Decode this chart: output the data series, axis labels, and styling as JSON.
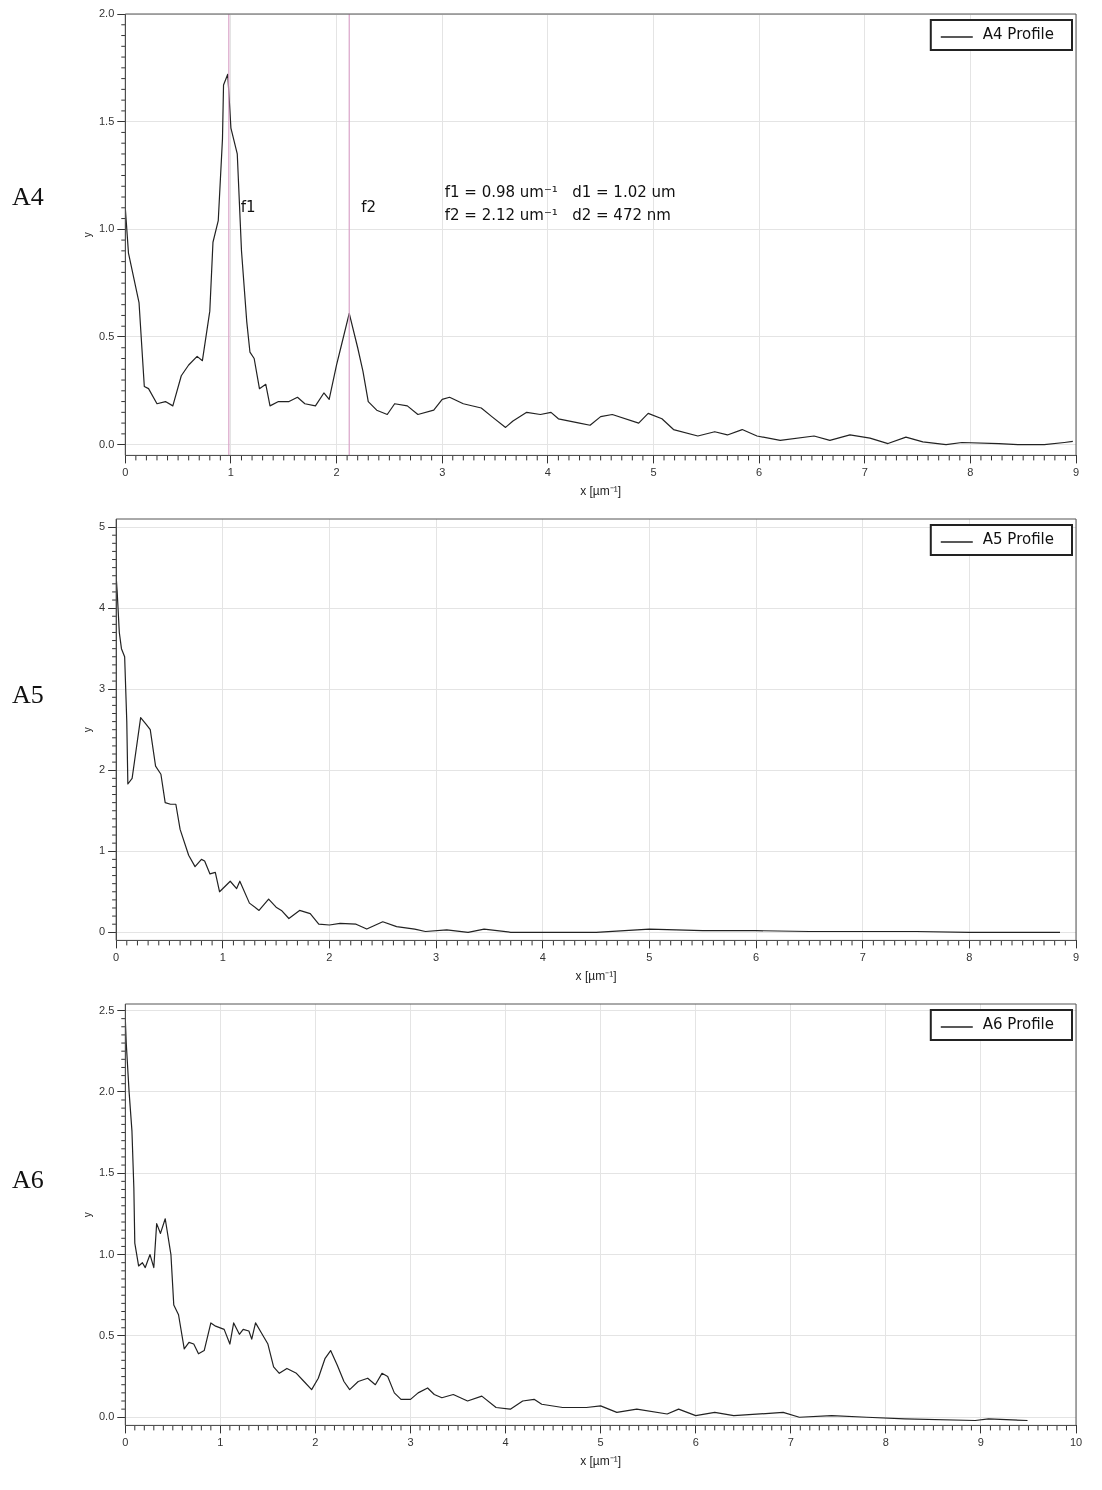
{
  "chart_data": [
    {
      "type": "line",
      "title": "A4",
      "xlabel": "x [µm⁻¹]",
      "ylabel": "y",
      "xlim": [
        0,
        9
      ],
      "xticks": [
        0,
        1,
        2,
        3,
        4,
        5,
        6,
        7,
        8,
        9
      ],
      "ylim": [
        -0.05,
        2.0
      ],
      "yticks": [
        {
          "value": 0,
          "label": "0.0"
        },
        0.5,
        {
          "value": 1,
          "label": "1.0"
        },
        1.5,
        {
          "value": 2,
          "label": "2.0"
        }
      ],
      "grid": true,
      "legend": "top right",
      "marker": "none",
      "line_style": "solid",
      "ref_lines": [
        {
          "axis": "x",
          "value": 0.98,
          "label": "f1",
          "color": "#d9a3c8"
        },
        {
          "axis": "x",
          "value": 2.12,
          "label": "f2",
          "color": "#d9a3c8"
        }
      ],
      "annotations": [
        "f1 = 0.98 um⁻¹   d1 = 1.02 um",
        "f2 = 2.12 um⁻¹   d2 = 472 nm"
      ],
      "series": [
        {
          "name": "A4 Profile",
          "color": "#222222",
          "x": [
            0,
            0.03,
            0.13,
            0.18,
            0.22,
            0.3,
            0.38,
            0.45,
            0.53,
            0.6,
            0.68,
            0.73,
            0.8,
            0.83,
            0.88,
            0.92,
            0.93,
            0.97,
            1.0,
            1.06,
            1.1,
            1.15,
            1.18,
            1.22,
            1.27,
            1.33,
            1.37,
            1.45,
            1.55,
            1.63,
            1.7,
            1.8,
            1.88,
            1.93,
            2.0,
            2.04,
            2.12,
            2.2,
            2.25,
            2.3,
            2.38,
            2.48,
            2.55,
            2.67,
            2.77,
            2.92,
            3.0,
            3.07,
            3.2,
            3.37,
            3.47,
            3.6,
            3.67,
            3.8,
            3.93,
            4.03,
            4.1,
            4.3,
            4.4,
            4.5,
            4.61,
            4.86,
            4.95,
            5.08,
            5.19,
            5.42,
            5.58,
            5.7,
            5.84,
            5.98,
            6.2,
            6.52,
            6.67,
            6.86,
            7.05,
            7.22,
            7.39,
            7.55,
            7.77,
            7.92,
            8.27,
            8.45,
            8.7,
            8.89,
            8.97
          ],
          "values": [
            1.1,
            0.89,
            0.66,
            0.27,
            0.26,
            0.19,
            0.2,
            0.18,
            0.32,
            0.37,
            0.41,
            0.39,
            0.62,
            0.94,
            1.04,
            1.42,
            1.67,
            1.72,
            1.47,
            1.35,
            0.9,
            0.57,
            0.43,
            0.4,
            0.26,
            0.28,
            0.18,
            0.2,
            0.2,
            0.22,
            0.19,
            0.18,
            0.24,
            0.21,
            0.37,
            0.45,
            0.61,
            0.45,
            0.34,
            0.2,
            0.16,
            0.14,
            0.19,
            0.18,
            0.14,
            0.16,
            0.21,
            0.22,
            0.19,
            0.17,
            0.13,
            0.08,
            0.11,
            0.15,
            0.14,
            0.15,
            0.12,
            0.1,
            0.09,
            0.13,
            0.14,
            0.1,
            0.145,
            0.12,
            0.07,
            0.04,
            0.06,
            0.045,
            0.07,
            0.04,
            0.02,
            0.04,
            0.02,
            0.045,
            0.03,
            0.005,
            0.035,
            0.013,
            0.0,
            0.01,
            0.005,
            0.0,
            0.0,
            0.01,
            0.015
          ]
        }
      ]
    },
    {
      "type": "line",
      "title": "A5",
      "xlabel": "x [µm⁻¹]",
      "ylabel": "y",
      "xlim": [
        0,
        9
      ],
      "xticks": [
        0,
        1,
        2,
        3,
        4,
        5,
        6,
        7,
        8,
        9
      ],
      "ylim": [
        -0.1,
        5.1
      ],
      "yticks": [
        0,
        1,
        2,
        3,
        4,
        5
      ],
      "grid": true,
      "legend": "top right",
      "marker": "none",
      "line_style": "solid",
      "series": [
        {
          "name": "A5 Profile",
          "color": "#222222",
          "x": [
            0,
            0.01,
            0.03,
            0.05,
            0.08,
            0.1,
            0.11,
            0.15,
            0.23,
            0.28,
            0.32,
            0.37,
            0.42,
            0.46,
            0.51,
            0.56,
            0.6,
            0.68,
            0.74,
            0.8,
            0.83,
            0.88,
            0.93,
            0.97,
            1.07,
            1.13,
            1.16,
            1.25,
            1.34,
            1.43,
            1.5,
            1.55,
            1.62,
            1.72,
            1.82,
            1.9,
            2.0,
            2.1,
            2.25,
            2.35,
            2.5,
            2.63,
            2.8,
            2.9,
            3.1,
            3.3,
            3.45,
            3.7,
            4.0,
            4.5,
            5.0,
            5.5,
            6.0,
            6.5,
            7.0,
            7.5,
            8.0,
            8.5,
            8.85
          ],
          "values": [
            4.4,
            4.2,
            3.7,
            3.5,
            3.4,
            2.6,
            1.83,
            1.9,
            2.65,
            2.57,
            2.5,
            2.05,
            1.95,
            1.6,
            1.58,
            1.58,
            1.27,
            0.95,
            0.81,
            0.9,
            0.88,
            0.72,
            0.74,
            0.5,
            0.63,
            0.54,
            0.63,
            0.36,
            0.27,
            0.41,
            0.31,
            0.27,
            0.17,
            0.27,
            0.23,
            0.1,
            0.09,
            0.11,
            0.1,
            0.04,
            0.13,
            0.07,
            0.04,
            0.01,
            0.03,
            0.0,
            0.04,
            0.0,
            0.0,
            0.0,
            0.04,
            0.02,
            0.02,
            0.01,
            0.01,
            0.01,
            0.0,
            0.0,
            0.0
          ]
        }
      ]
    },
    {
      "type": "line",
      "title": "A6",
      "xlabel": "x [µm⁻¹]",
      "ylabel": "y",
      "xlim": [
        0,
        10
      ],
      "xticks": [
        0,
        1,
        2,
        3,
        4,
        5,
        6,
        7,
        8,
        9,
        10
      ],
      "ylim": [
        -0.05,
        2.54
      ],
      "yticks": [
        {
          "value": 0,
          "label": "0.0"
        },
        0.5,
        {
          "value": 1,
          "label": "1.0"
        },
        1.5,
        {
          "value": 2,
          "label": "2.0"
        },
        2.5
      ],
      "grid": true,
      "legend": "top right",
      "marker": "none",
      "line_style": "solid",
      "series": [
        {
          "name": "A6 Profile",
          "color": "#222222",
          "x": [
            0,
            0.01,
            0.04,
            0.07,
            0.09,
            0.1,
            0.14,
            0.18,
            0.21,
            0.26,
            0.3,
            0.33,
            0.37,
            0.42,
            0.48,
            0.51,
            0.56,
            0.62,
            0.67,
            0.72,
            0.77,
            0.83,
            0.9,
            0.95,
            1.04,
            1.1,
            1.14,
            1.2,
            1.24,
            1.3,
            1.33,
            1.37,
            1.44,
            1.5,
            1.56,
            1.62,
            1.7,
            1.8,
            1.88,
            1.96,
            2.03,
            2.1,
            2.16,
            2.23,
            2.3,
            2.36,
            2.45,
            2.55,
            2.63,
            2.7,
            2.76,
            2.83,
            2.9,
            3.0,
            3.08,
            3.18,
            3.25,
            3.33,
            3.45,
            3.6,
            3.75,
            3.9,
            4.05,
            4.18,
            4.3,
            4.38,
            4.6,
            4.85,
            5.0,
            5.17,
            5.38,
            5.7,
            5.82,
            6.0,
            6.2,
            6.4,
            6.92,
            7.09,
            7.43,
            7.8,
            8.2,
            8.94,
            9.08,
            9.49
          ],
          "values": [
            2.45,
            2.3,
            2.0,
            1.76,
            1.41,
            1.07,
            0.93,
            0.95,
            0.92,
            1.0,
            0.92,
            1.19,
            1.13,
            1.22,
            1.0,
            0.69,
            0.63,
            0.42,
            0.46,
            0.45,
            0.39,
            0.41,
            0.58,
            0.56,
            0.54,
            0.45,
            0.58,
            0.51,
            0.54,
            0.53,
            0.48,
            0.58,
            0.51,
            0.45,
            0.31,
            0.27,
            0.3,
            0.27,
            0.22,
            0.17,
            0.24,
            0.36,
            0.41,
            0.32,
            0.22,
            0.17,
            0.22,
            0.24,
            0.2,
            0.27,
            0.25,
            0.15,
            0.11,
            0.11,
            0.15,
            0.18,
            0.14,
            0.12,
            0.14,
            0.1,
            0.13,
            0.06,
            0.05,
            0.1,
            0.11,
            0.08,
            0.06,
            0.06,
            0.07,
            0.03,
            0.05,
            0.02,
            0.05,
            0.01,
            0.03,
            0.01,
            0.03,
            0.0,
            0.01,
            0.0,
            -0.01,
            -0.02,
            -0.01,
            -0.02
          ]
        }
      ]
    }
  ]
}
